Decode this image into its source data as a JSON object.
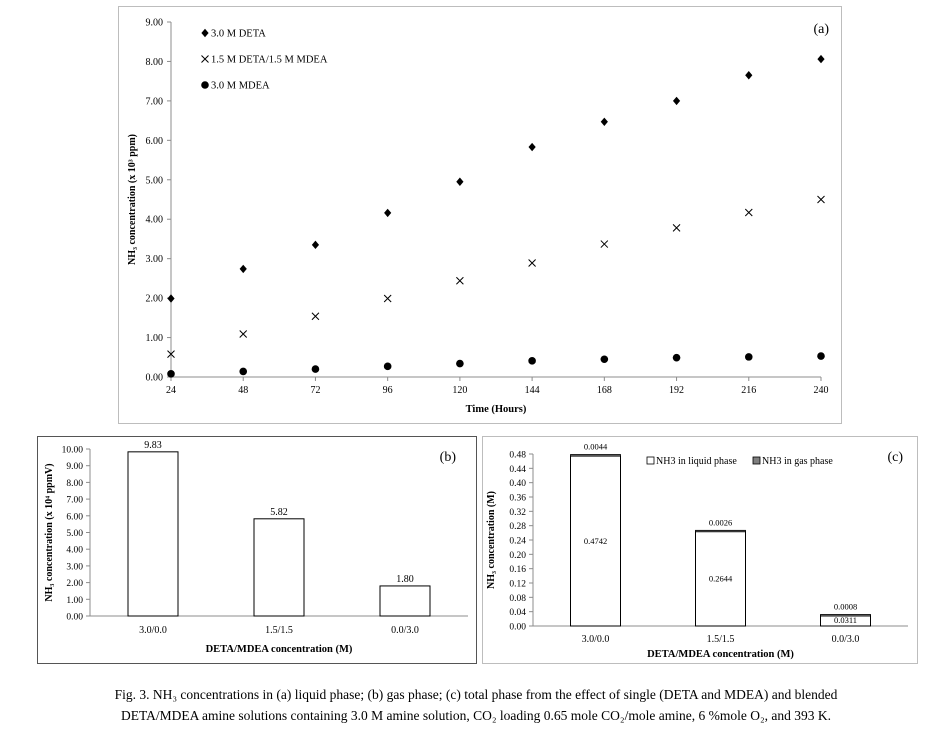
{
  "chart_data": [
    {
      "type": "scatter",
      "panel_label": "(a)",
      "xlabel": "Time (Hours)",
      "ylabel": "NH₃ concentration (x 10³ ppm)",
      "x": [
        24,
        48,
        72,
        96,
        120,
        144,
        168,
        192,
        216,
        240
      ],
      "x_tick_labels": [
        "24",
        "48",
        "72",
        "96",
        "120",
        "144",
        "168",
        "192",
        "216",
        "240"
      ],
      "ylim": [
        0,
        9
      ],
      "y_tick_labels": [
        "0.00",
        "1.00",
        "2.00",
        "3.00",
        "4.00",
        "5.00",
        "6.00",
        "7.00",
        "8.00",
        "9.00"
      ],
      "grid": false,
      "legend_position": "top-left",
      "series": [
        {
          "name": "3.0 M DETA",
          "marker": "diamond",
          "values": [
            1.99,
            2.74,
            3.35,
            4.16,
            4.95,
            5.83,
            6.47,
            7.0,
            7.65,
            8.06
          ]
        },
        {
          "name": "1.5 M DETA/1.5 M MDEA",
          "marker": "cross",
          "values": [
            0.58,
            1.09,
            1.54,
            1.99,
            2.44,
            2.89,
            3.37,
            3.78,
            4.17,
            4.5
          ]
        },
        {
          "name": "3.0 M MDEA",
          "marker": "circle",
          "values": [
            0.08,
            0.14,
            0.2,
            0.27,
            0.34,
            0.41,
            0.45,
            0.49,
            0.51,
            0.53
          ]
        }
      ]
    },
    {
      "type": "bar",
      "panel_label": "(b)",
      "xlabel": "DETA/MDEA concentration (M)",
      "ylabel": "NH₃ concentration (x 10⁴ ppmV)",
      "categories": [
        "3.0/0.0",
        "1.5/1.5",
        "0.0/3.0"
      ],
      "values": [
        9.83,
        5.82,
        1.8
      ],
      "data_labels": [
        "9.83",
        "5.82",
        "1.80"
      ],
      "ylim": [
        0,
        10
      ],
      "y_tick_labels": [
        "0.00",
        "1.00",
        "2.00",
        "3.00",
        "4.00",
        "5.00",
        "6.00",
        "7.00",
        "8.00",
        "9.00",
        "10.00"
      ],
      "grid": false
    },
    {
      "type": "bar",
      "stacked": true,
      "panel_label": "(c)",
      "xlabel": "DETA/MDEA concentration (M)",
      "ylabel": "NH₃ concentration (M)",
      "categories": [
        "3.0/0.0",
        "1.5/1.5",
        "0.0/3.0"
      ],
      "ylim": [
        0,
        0.48
      ],
      "y_tick_labels": [
        "0.00",
        "0.04",
        "0.08",
        "0.12",
        "0.16",
        "0.20",
        "0.24",
        "0.28",
        "0.32",
        "0.36",
        "0.40",
        "0.44",
        "0.48"
      ],
      "legend_position": "top-right",
      "grid": false,
      "series": [
        {
          "name": "NH3 in liquid phase",
          "color": "#ffffff",
          "values": [
            0.4742,
            0.2644,
            0.0311
          ],
          "data_labels": [
            "0.4742",
            "0.2644",
            "0.0311"
          ]
        },
        {
          "name": "NH3 in gas phase",
          "color": "#7f7f7f",
          "values": [
            0.0044,
            0.0026,
            0.0008
          ],
          "data_labels": [
            "0.0044",
            "0.0026",
            "0.0008"
          ]
        }
      ]
    }
  ],
  "caption": {
    "line1": "Fig. 3. NH₃ concentrations in (a) liquid phase; (b) gas phase; (c) total phase from the effect of single (DETA and MDEA) and blended",
    "line2": "DETA/MDEA amine solutions containing 3.0 M amine solution, CO₂ loading 0.65 mole CO₂/mole amine, 6 %mole O₂, and 393 K."
  }
}
